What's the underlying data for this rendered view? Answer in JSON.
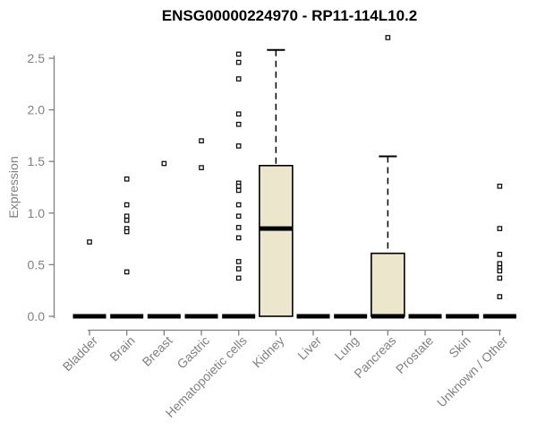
{
  "colors": {
    "background": "#ffffff",
    "axis": "#808080",
    "box_fill": "#ECE6CD",
    "data": "#000000",
    "title": "#000000"
  },
  "chart_data": {
    "type": "boxplot",
    "title": "ENSG00000224970 - RP11-114L10.2",
    "xlabel": "",
    "ylabel": "Expression",
    "ylim": [
      0,
      2.75
    ],
    "yticks": [
      0.0,
      0.5,
      1.0,
      1.5,
      2.0,
      2.5
    ],
    "grid": false,
    "legend": "none",
    "categories": [
      "Bladder",
      "Brain",
      "Breast",
      "Gastric",
      "Hematopoietic cells",
      "Kidney",
      "Liver",
      "Lung",
      "Pancreas",
      "Prostate",
      "Skin",
      "Unknown / Other"
    ],
    "series": [
      {
        "label": "Bladder",
        "q1": 0,
        "median": 0,
        "q3": 0,
        "whisker_low": 0,
        "whisker_high": 0,
        "outliers": [
          0.72
        ]
      },
      {
        "label": "Brain",
        "q1": 0,
        "median": 0,
        "q3": 0,
        "whisker_low": 0,
        "whisker_high": 0,
        "outliers": [
          1.33,
          1.08,
          0.97,
          0.93,
          0.85,
          0.82,
          0.43
        ]
      },
      {
        "label": "Breast",
        "q1": 0,
        "median": 0,
        "q3": 0,
        "whisker_low": 0,
        "whisker_high": 0,
        "outliers": [
          1.48
        ]
      },
      {
        "label": "Gastric",
        "q1": 0,
        "median": 0,
        "q3": 0,
        "whisker_low": 0,
        "whisker_high": 0,
        "outliers": [
          1.7,
          1.44
        ]
      },
      {
        "label": "Hematopoietic cells",
        "q1": 0,
        "median": 0,
        "q3": 0,
        "whisker_low": 0,
        "whisker_high": 0,
        "outliers": [
          2.54,
          2.46,
          2.3,
          1.96,
          1.86,
          1.65,
          1.29,
          1.26,
          1.22,
          1.08,
          0.97,
          0.86,
          0.76,
          0.53,
          0.46,
          0.37
        ]
      },
      {
        "label": "Kidney",
        "q1": 0,
        "median": 0.85,
        "q3": 1.46,
        "whisker_low": 0,
        "whisker_high": 2.58,
        "outliers": []
      },
      {
        "label": "Liver",
        "q1": 0,
        "median": 0,
        "q3": 0,
        "whisker_low": 0,
        "whisker_high": 0,
        "outliers": []
      },
      {
        "label": "Lung",
        "q1": 0,
        "median": 0,
        "q3": 0,
        "whisker_low": 0,
        "whisker_high": 0,
        "outliers": []
      },
      {
        "label": "Pancreas",
        "q1": 0,
        "median": 0,
        "q3": 0.61,
        "whisker_low": 0,
        "whisker_high": 1.55,
        "outliers": [
          2.7
        ]
      },
      {
        "label": "Prostate",
        "q1": 0,
        "median": 0,
        "q3": 0,
        "whisker_low": 0,
        "whisker_high": 0,
        "outliers": []
      },
      {
        "label": "Skin",
        "q1": 0,
        "median": 0,
        "q3": 0,
        "whisker_low": 0,
        "whisker_high": 0,
        "outliers": []
      },
      {
        "label": "Unknown / Other",
        "q1": 0,
        "median": 0,
        "q3": 0,
        "whisker_low": 0,
        "whisker_high": 0,
        "outliers": [
          1.26,
          0.85,
          0.6,
          0.51,
          0.47,
          0.44,
          0.37,
          0.19
        ]
      }
    ]
  }
}
